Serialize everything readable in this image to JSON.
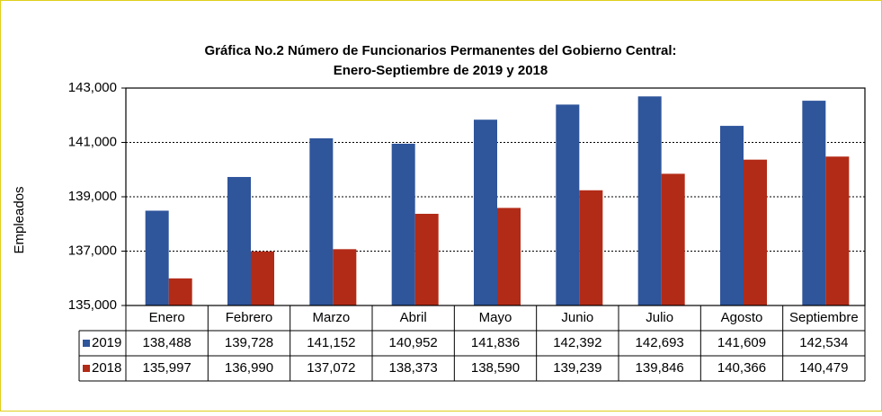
{
  "chart_data": {
    "type": "bar",
    "title": "Gráfica No.2 Número de Funcionarios Permanentes del Gobierno Central:",
    "subtitle": "Enero-Septiembre de 2019 y 2018",
    "y_label": "Empleados",
    "categories": [
      "Enero",
      "Febrero",
      "Marzo",
      "Abril",
      "Mayo",
      "Junio",
      "Julio",
      "Agosto",
      "Septiembre"
    ],
    "series": [
      {
        "name": "2019",
        "color": "#2f559b",
        "values": [
          138488,
          139728,
          141152,
          140952,
          141836,
          142392,
          142693,
          141609,
          142534
        ],
        "value_labels": [
          "138,488",
          "139,728",
          "141,152",
          "140,952",
          "141,836",
          "142,392",
          "142,693",
          "141,609",
          "142,534"
        ]
      },
      {
        "name": "2018",
        "color": "#b22b17",
        "values": [
          135997,
          136990,
          137072,
          138373,
          138590,
          139239,
          139846,
          140366,
          140479
        ],
        "value_labels": [
          "135,997",
          "136,990",
          "137,072",
          "138,373",
          "138,590",
          "139,239",
          "139,846",
          "140,366",
          "140,479"
        ]
      }
    ],
    "ylim": [
      135000,
      143000
    ],
    "yticks": [
      {
        "value": 135000,
        "label": "135,000"
      },
      {
        "value": 137000,
        "label": "137,000"
      },
      {
        "value": 139000,
        "label": "139,000"
      },
      {
        "value": 141000,
        "label": "141,000"
      },
      {
        "value": 143000,
        "label": "143,000"
      }
    ],
    "grid": true
  }
}
